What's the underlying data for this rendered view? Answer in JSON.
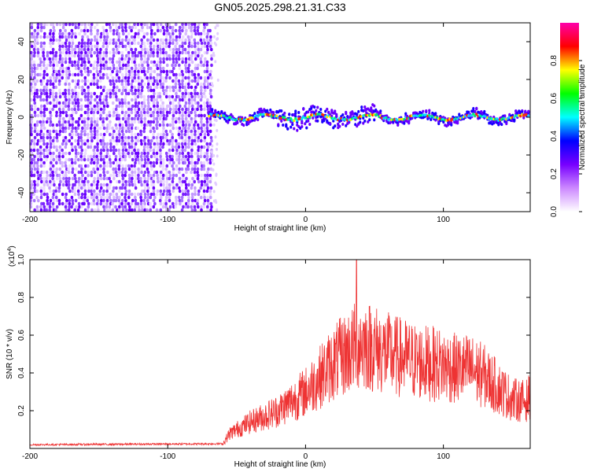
{
  "title": "GN05.2025.298.21.31.C33",
  "colors": {
    "signal": "#ee3333",
    "noise": "#9d4dff",
    "axis": "#000000"
  },
  "chart_data": [
    {
      "type": "heatmap",
      "name": "spectrogram",
      "xlabel": "Height of straight line (km)",
      "ylabel": "Frequency (Hz)",
      "xlim": [
        -200,
        163
      ],
      "ylim": [
        -50,
        50
      ],
      "xticks": [
        -200,
        -100,
        0,
        100
      ],
      "xtick_labels": [
        "-200",
        "-100",
        "0",
        "100"
      ],
      "yticks": [
        -40,
        -20,
        0,
        20,
        40
      ],
      "ytick_labels": [
        "-40",
        "-20",
        "0",
        "20",
        "40"
      ],
      "noise_region_x": [
        -200,
        -68
      ],
      "signal_band_hz": [
        -5,
        5
      ],
      "colorbar": {
        "label": "Normalized spectral amplitude",
        "range": [
          0,
          1
        ],
        "ticks": [
          0.0,
          0.2,
          0.4,
          0.6,
          0.8
        ],
        "tick_labels": [
          "0.0",
          "0.2",
          "0.4",
          "0.6",
          "0.8"
        ],
        "colors": [
          "#ffffff",
          "#cc88ff",
          "#7700ff",
          "#0000ff",
          "#00ffff",
          "#00ff00",
          "#ffff00",
          "#ff0000",
          "#ff00aa"
        ]
      }
    },
    {
      "type": "line",
      "name": "snr",
      "xlabel": "Height of straight line (km)",
      "ylabel": "SNR (10 * v/v)",
      "scale_label": "(x10",
      "scale_exp": "4",
      "scale_close": ")",
      "xlim": [
        -200,
        163
      ],
      "ylim": [
        0,
        1.0
      ],
      "xticks": [
        -200,
        -100,
        0,
        100
      ],
      "xtick_labels": [
        "-200",
        "-100",
        "0",
        "100"
      ],
      "yticks": [
        0.2,
        0.4,
        0.6,
        0.8,
        1.0
      ],
      "ytick_labels": [
        "0.2",
        "0.4",
        "0.6",
        "0.8",
        "1.0"
      ],
      "envelope": [
        [
          -200,
          0.02
        ],
        [
          -60,
          0.025
        ],
        [
          -55,
          0.08
        ],
        [
          -40,
          0.14
        ],
        [
          -20,
          0.2
        ],
        [
          0,
          0.3
        ],
        [
          20,
          0.45
        ],
        [
          40,
          0.56
        ],
        [
          60,
          0.5
        ],
        [
          80,
          0.46
        ],
        [
          100,
          0.44
        ],
        [
          110,
          0.42
        ],
        [
          120,
          0.42
        ],
        [
          130,
          0.38
        ],
        [
          140,
          0.32
        ],
        [
          150,
          0.26
        ],
        [
          160,
          0.25
        ],
        [
          163,
          0.28
        ]
      ],
      "peak": {
        "x": 37,
        "y": 1.0
      }
    }
  ]
}
